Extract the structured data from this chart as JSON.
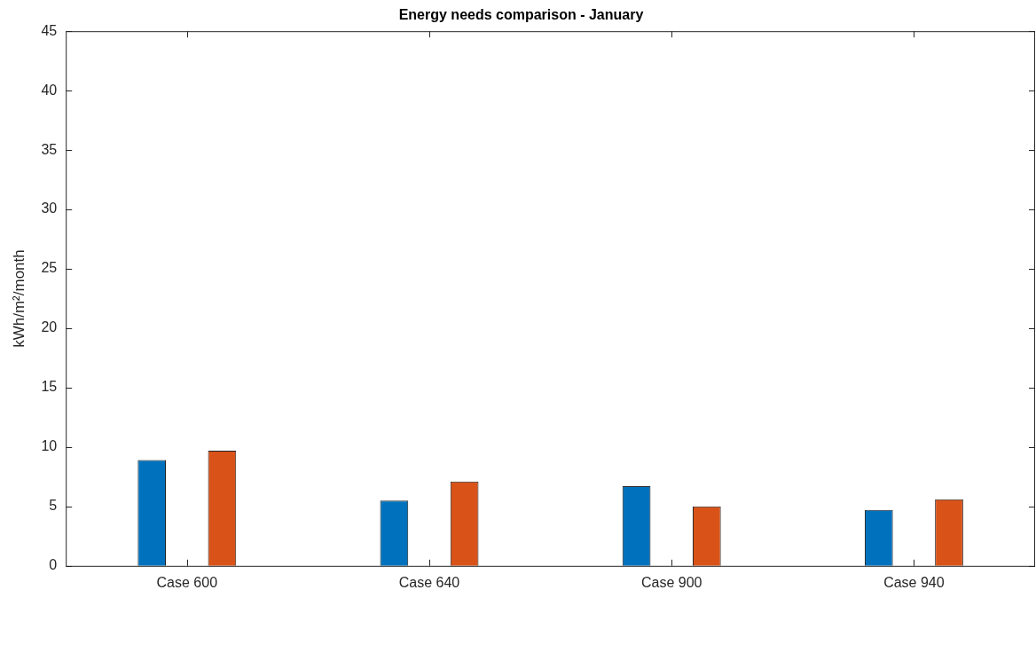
{
  "chart_data": {
    "type": "bar",
    "title": "Energy needs comparison - January",
    "ylabel": "kWh/m²/month",
    "categories": [
      "Case 600",
      "Case 640",
      "Case 900",
      "Case 940"
    ],
    "series": [
      {
        "color": "#0072bd",
        "values": [
          8.9,
          5.5,
          6.7,
          4.7
        ]
      },
      {
        "color": "#d95319",
        "values": [
          9.7,
          7.1,
          5.0,
          5.6
        ]
      }
    ],
    "ylim": [
      0,
      45
    ],
    "yticks": [
      0,
      5,
      10,
      15,
      20,
      25,
      30,
      35,
      40,
      45
    ]
  }
}
